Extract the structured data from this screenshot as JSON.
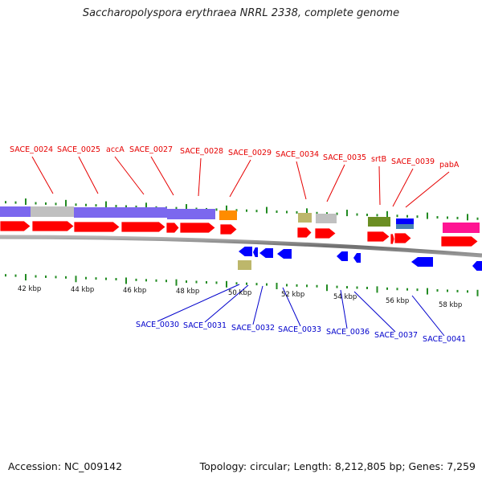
{
  "title": "Saccharopolyspora erythraea NRRL 2338, complete genome",
  "accession_text": "Accession: NC_009142",
  "summary_text": "Topology: circular; Length: 8,212,805 bp; Genes: 7,259",
  "colors": {
    "forward_gene": "#ff0000",
    "reverse_gene": "#0000ff",
    "tick": "#228b22",
    "backbone": "#808080",
    "cds_purple": "#7b68ee",
    "cds_grey": "#c0c0c0",
    "cds_orange": "#ff8c00",
    "cds_khaki": "#bdb76b",
    "cds_olive": "#6b8e23",
    "cds_blue": "#0000ff",
    "cds_steel": "#4682b4",
    "cds_pink": "#ff1493"
  },
  "scale_labels": [
    "42 kbp",
    "44 kbp",
    "46 kbp",
    "48 kbp",
    "50 kbp",
    "52 kbp",
    "54 kbp",
    "56 kbp",
    "58 kbp"
  ],
  "top_labels": [
    "SACE_0024",
    "SACE_0025",
    "accA",
    "SACE_0027",
    "SACE_0028",
    "SACE_0029",
    "SACE_0034",
    "SACE_0035",
    "srtB",
    "SACE_0039",
    "pabA"
  ],
  "bottom_labels": [
    "SACE_0030",
    "SACE_0031",
    "SACE_0032",
    "SACE_0033",
    "SACE_0036",
    "SACE_0037",
    "SACE_0041"
  ]
}
